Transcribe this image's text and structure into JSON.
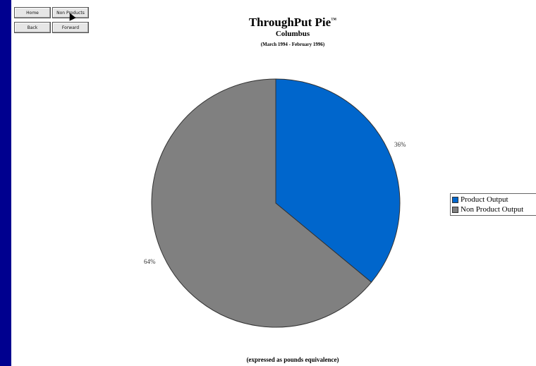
{
  "nav": {
    "home": "Home",
    "non_products": "Non Products",
    "back": "Back",
    "forward": "Forward"
  },
  "chart_data": {
    "type": "pie",
    "title": "ThroughPut Pie",
    "title_mark": "™",
    "subtitle": "Columbus",
    "period": "(March 1994 - February 1996)",
    "footnote": "(expressed as pounds equivalence)",
    "slices": [
      {
        "label": "Product Output",
        "value": 36,
        "display": "36%",
        "color": "#0066cc"
      },
      {
        "label": "Non Product Output",
        "value": 64,
        "display": "64%",
        "color": "#808080"
      }
    ],
    "legend_position": "right"
  }
}
